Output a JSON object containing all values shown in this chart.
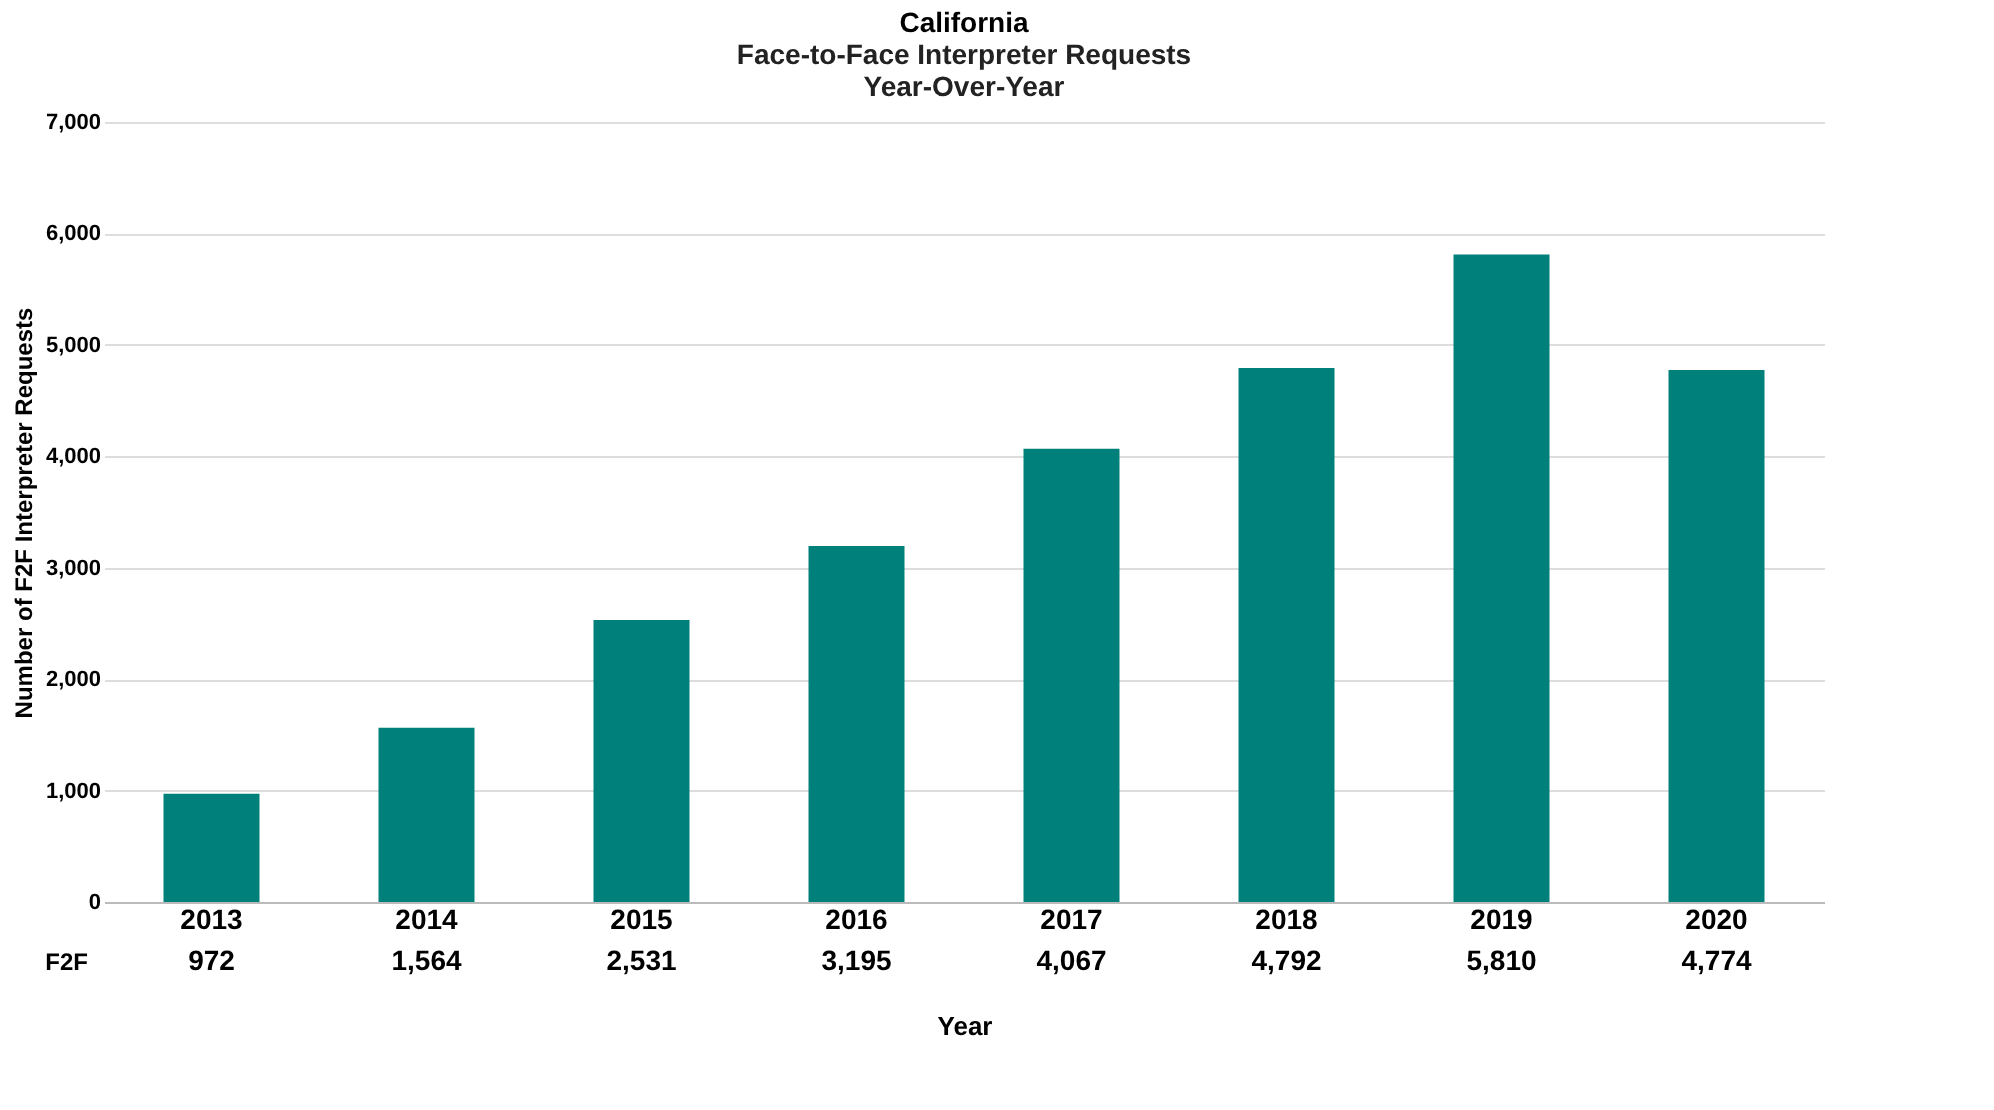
{
  "chart_data": {
    "type": "bar",
    "title": "California",
    "subtitle": "Face-to-Face Interpreter Requests\nYear-Over-Year",
    "xlabel": "Year",
    "ylabel": "Number of F2F Interpreter Requests",
    "categories": [
      "2013",
      "2014",
      "2015",
      "2016",
      "2017",
      "2018",
      "2019",
      "2020"
    ],
    "series": [
      {
        "name": "F2F",
        "color": "#00807a",
        "values": [
          972,
          1564,
          2531,
          3195,
          4067,
          4792,
          5810,
          4774
        ],
        "value_labels": [
          "972",
          "1,564",
          "2,531",
          "3,195",
          "4,067",
          "4,792",
          "5,810",
          "4,774"
        ]
      }
    ],
    "ylim": [
      0,
      7000
    ],
    "yticks": [
      0,
      {
        "value": 1000,
        "label": "1,000"
      },
      {
        "value": 2000,
        "label": "2,000"
      },
      {
        "value": 3000,
        "label": "3,000"
      },
      {
        "value": 4000,
        "label": "4,000"
      },
      {
        "value": 5000,
        "label": "5,000"
      },
      {
        "value": 6000,
        "label": "6,000"
      },
      {
        "value": 7000,
        "label": "7,000"
      }
    ],
    "grid": "y"
  }
}
